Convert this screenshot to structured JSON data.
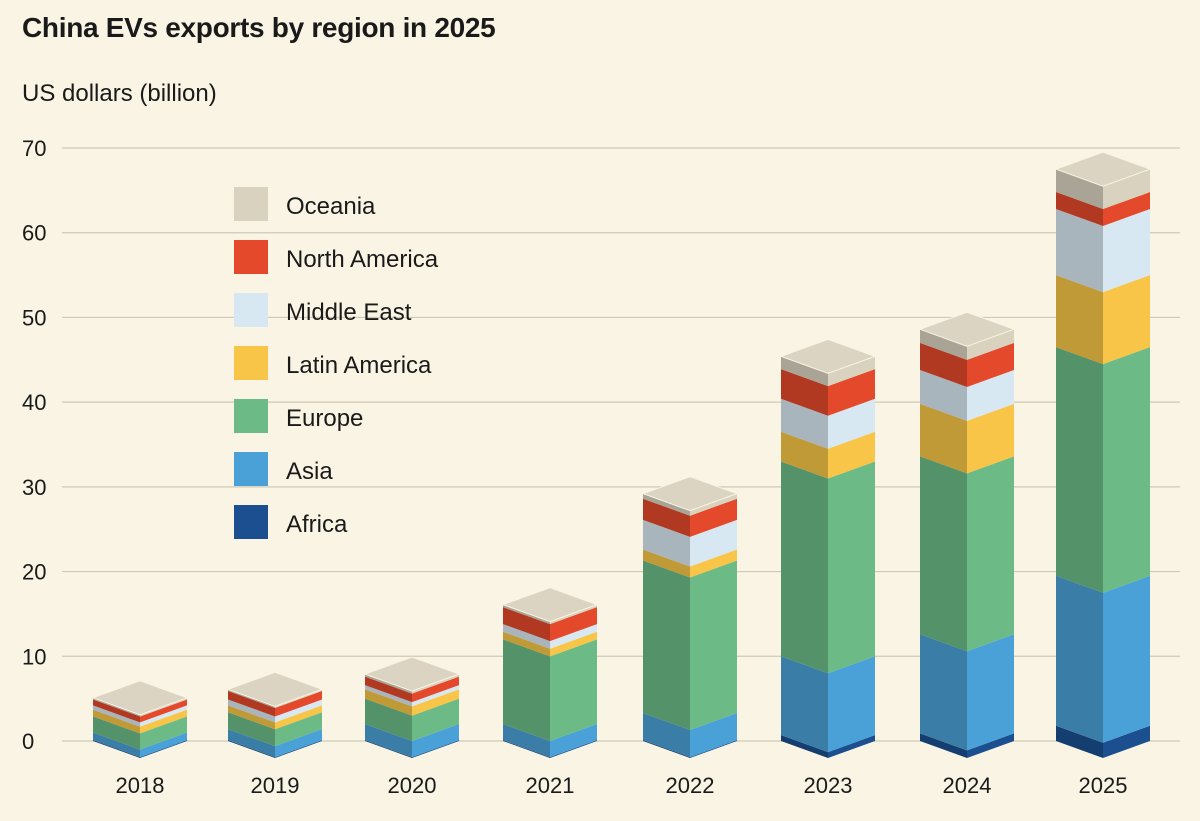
{
  "chart_data": {
    "type": "bar",
    "stacked": true,
    "title": "China EVs exports by region in 2025",
    "ylabel": "US dollars (billion)",
    "xlabel": "",
    "ylim": [
      0,
      70
    ],
    "yticks": [
      0,
      10,
      20,
      30,
      40,
      50,
      60,
      70
    ],
    "grid": true,
    "legend_position": "top-left",
    "categories": [
      "2018",
      "2019",
      "2020",
      "2021",
      "2022",
      "2023",
      "2024",
      "2025"
    ],
    "series": [
      {
        "name": "Africa",
        "color": "#1b4f8f",
        "values": [
          0.1,
          0.1,
          0.1,
          0.1,
          0.1,
          0.7,
          0.9,
          1.8
        ]
      },
      {
        "name": "Asia",
        "color": "#4aa1d8",
        "values": [
          0.9,
          1.3,
          1.9,
          1.9,
          3.2,
          9.3,
          11.7,
          17.7
        ]
      },
      {
        "name": "Europe",
        "color": "#6cbb87",
        "values": [
          1.9,
          2.0,
          3.0,
          10.0,
          18.0,
          23.0,
          21.0,
          27.0
        ]
      },
      {
        "name": "Latin America",
        "color": "#f8c548",
        "values": [
          0.8,
          0.8,
          1.1,
          0.9,
          1.3,
          3.5,
          6.2,
          8.5
        ]
      },
      {
        "name": "Middle East",
        "color": "#d8e8f2",
        "values": [
          0.5,
          0.7,
          0.5,
          0.9,
          3.5,
          3.9,
          4.0,
          7.8
        ]
      },
      {
        "name": "North America",
        "color": "#e3492a",
        "values": [
          0.7,
          1.0,
          1.0,
          2.0,
          2.5,
          3.5,
          3.2,
          2.0
        ]
      },
      {
        "name": "Oceania",
        "color": "#d9d2bf",
        "values": [
          0.2,
          0.2,
          0.3,
          0.3,
          0.6,
          1.5,
          1.6,
          2.7
        ]
      }
    ],
    "legend_order": [
      "Oceania",
      "North America",
      "Middle East",
      "Latin America",
      "Europe",
      "Asia",
      "Africa"
    ]
  }
}
